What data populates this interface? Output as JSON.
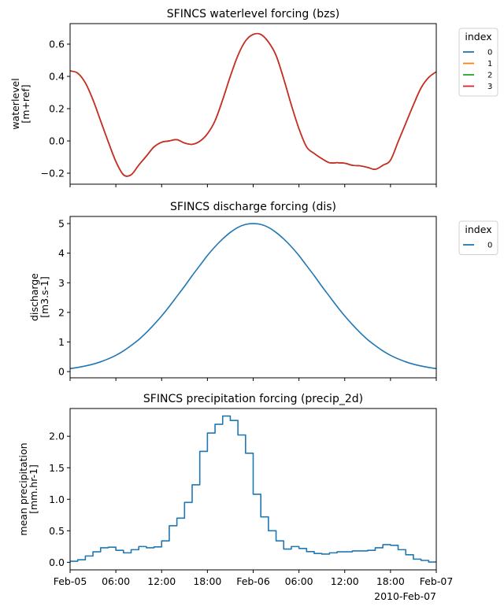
{
  "chart_data": [
    {
      "type": "line",
      "title": "SFINCS waterlevel forcing (bzs)",
      "ylabel": [
        "waterlevel",
        "[m+ref]"
      ],
      "ylim": [
        -0.268,
        0.727
      ],
      "yticks": [
        -0.2,
        0.0,
        0.2,
        0.4,
        0.6
      ],
      "yticklabels": [
        "−0.2",
        "0.0",
        "0.2",
        "0.4",
        "0.6"
      ],
      "xlim": [
        "2010-02-05T00:00",
        "2010-02-07T00:00"
      ],
      "xticks": [
        "2010-02-05T00:00",
        "2010-02-05T06:00",
        "2010-02-05T12:00",
        "2010-02-05T18:00",
        "2010-02-06T00:00",
        "2010-02-06T06:00",
        "2010-02-06T12:00",
        "2010-02-06T18:00",
        "2010-02-07T00:00"
      ],
      "xticklabels_visible": false,
      "grid": false,
      "legend": {
        "title": "index",
        "placement": "outside-top-right"
      },
      "x": [
        "2010-02-05T00:00",
        "2010-02-05T01:00",
        "2010-02-05T02:00",
        "2010-02-05T03:00",
        "2010-02-05T04:00",
        "2010-02-05T05:00",
        "2010-02-05T06:00",
        "2010-02-05T07:00",
        "2010-02-05T08:00",
        "2010-02-05T09:00",
        "2010-02-05T10:00",
        "2010-02-05T11:00",
        "2010-02-05T12:00",
        "2010-02-05T13:00",
        "2010-02-05T14:00",
        "2010-02-05T15:00",
        "2010-02-05T16:00",
        "2010-02-05T17:00",
        "2010-02-05T18:00",
        "2010-02-05T19:00",
        "2010-02-05T20:00",
        "2010-02-05T21:00",
        "2010-02-05T22:00",
        "2010-02-05T23:00",
        "2010-02-06T00:00",
        "2010-02-06T01:00",
        "2010-02-06T02:00",
        "2010-02-06T03:00",
        "2010-02-06T04:00",
        "2010-02-06T05:00",
        "2010-02-06T06:00",
        "2010-02-06T07:00",
        "2010-02-06T08:00",
        "2010-02-06T09:00",
        "2010-02-06T10:00",
        "2010-02-06T11:00",
        "2010-02-06T12:00",
        "2010-02-06T13:00",
        "2010-02-06T14:00",
        "2010-02-06T15:00",
        "2010-02-06T16:00",
        "2010-02-06T17:00",
        "2010-02-06T18:00",
        "2010-02-06T19:00",
        "2010-02-06T20:00",
        "2010-02-06T21:00",
        "2010-02-06T22:00",
        "2010-02-06T23:00",
        "2010-02-07T00:00"
      ],
      "series": [
        {
          "name": "0",
          "color": "#1f77b4",
          "values": [
            0.434,
            0.42,
            0.36,
            0.255,
            0.125,
            -0.005,
            -0.127,
            -0.21,
            -0.21,
            -0.15,
            -0.094,
            -0.037,
            -0.008,
            0.0,
            0.008,
            -0.013,
            -0.021,
            -0.002,
            0.044,
            0.125,
            0.255,
            0.4,
            0.53,
            0.62,
            0.66,
            0.66,
            0.613,
            0.53,
            0.385,
            0.223,
            0.076,
            -0.037,
            -0.078,
            -0.11,
            -0.135,
            -0.135,
            -0.138,
            -0.151,
            -0.154,
            -0.164,
            -0.176,
            -0.151,
            -0.119,
            -0.005,
            0.109,
            0.223,
            0.328,
            0.393,
            0.429
          ]
        },
        {
          "name": "1",
          "color": "#ff7f0e",
          "values": [
            0.434,
            0.42,
            0.36,
            0.255,
            0.125,
            -0.005,
            -0.127,
            -0.21,
            -0.21,
            -0.15,
            -0.094,
            -0.037,
            -0.008,
            0.0,
            0.008,
            -0.013,
            -0.021,
            -0.002,
            0.044,
            0.125,
            0.255,
            0.4,
            0.53,
            0.62,
            0.66,
            0.66,
            0.613,
            0.53,
            0.385,
            0.223,
            0.076,
            -0.037,
            -0.078,
            -0.11,
            -0.135,
            -0.135,
            -0.138,
            -0.151,
            -0.154,
            -0.164,
            -0.176,
            -0.151,
            -0.119,
            -0.005,
            0.109,
            0.223,
            0.328,
            0.393,
            0.429
          ]
        },
        {
          "name": "2",
          "color": "#2ca02c",
          "values": [
            0.434,
            0.42,
            0.36,
            0.255,
            0.125,
            -0.005,
            -0.127,
            -0.21,
            -0.21,
            -0.15,
            -0.094,
            -0.037,
            -0.008,
            0.0,
            0.008,
            -0.013,
            -0.021,
            -0.002,
            0.044,
            0.125,
            0.255,
            0.4,
            0.53,
            0.62,
            0.66,
            0.66,
            0.613,
            0.53,
            0.385,
            0.223,
            0.076,
            -0.037,
            -0.078,
            -0.11,
            -0.135,
            -0.135,
            -0.138,
            -0.151,
            -0.154,
            -0.164,
            -0.176,
            -0.151,
            -0.119,
            -0.005,
            0.109,
            0.223,
            0.328,
            0.393,
            0.429
          ]
        },
        {
          "name": "3",
          "color": "#d62728",
          "values": [
            0.434,
            0.42,
            0.36,
            0.255,
            0.125,
            -0.005,
            -0.127,
            -0.21,
            -0.21,
            -0.15,
            -0.094,
            -0.037,
            -0.008,
            0.0,
            0.008,
            -0.013,
            -0.021,
            -0.002,
            0.044,
            0.125,
            0.255,
            0.4,
            0.53,
            0.62,
            0.66,
            0.66,
            0.613,
            0.53,
            0.385,
            0.223,
            0.076,
            -0.037,
            -0.078,
            -0.11,
            -0.135,
            -0.135,
            -0.138,
            -0.151,
            -0.154,
            -0.164,
            -0.176,
            -0.151,
            -0.119,
            -0.005,
            0.109,
            0.223,
            0.328,
            0.393,
            0.429
          ]
        }
      ]
    },
    {
      "type": "line",
      "title": "SFINCS discharge forcing (dis)",
      "ylabel": [
        "discharge",
        "[m3.s-1]"
      ],
      "ylim": [
        -0.21,
        5.24
      ],
      "yticks": [
        0,
        1,
        2,
        3,
        4,
        5
      ],
      "yticklabels": [
        "0",
        "1",
        "2",
        "3",
        "4",
        "5"
      ],
      "xlim": [
        "2010-02-05T00:00",
        "2010-02-07T00:00"
      ],
      "xticks": [
        "2010-02-05T00:00",
        "2010-02-05T06:00",
        "2010-02-05T12:00",
        "2010-02-05T18:00",
        "2010-02-06T00:00",
        "2010-02-06T06:00",
        "2010-02-06T12:00",
        "2010-02-06T18:00",
        "2010-02-07T00:00"
      ],
      "xticklabels_visible": false,
      "grid": false,
      "legend": {
        "title": "index",
        "placement": "outside-top-right"
      },
      "x": [
        "2010-02-05T00:00",
        "2010-02-05T01:00",
        "2010-02-05T02:00",
        "2010-02-05T03:00",
        "2010-02-05T04:00",
        "2010-02-05T05:00",
        "2010-02-05T06:00",
        "2010-02-05T07:00",
        "2010-02-05T08:00",
        "2010-02-05T09:00",
        "2010-02-05T10:00",
        "2010-02-05T11:00",
        "2010-02-05T12:00",
        "2010-02-05T13:00",
        "2010-02-05T14:00",
        "2010-02-05T15:00",
        "2010-02-05T16:00",
        "2010-02-05T17:00",
        "2010-02-05T18:00",
        "2010-02-05T19:00",
        "2010-02-05T20:00",
        "2010-02-05T21:00",
        "2010-02-05T22:00",
        "2010-02-05T23:00",
        "2010-02-06T00:00",
        "2010-02-06T01:00",
        "2010-02-06T02:00",
        "2010-02-06T03:00",
        "2010-02-06T04:00",
        "2010-02-06T05:00",
        "2010-02-06T06:00",
        "2010-02-06T07:00",
        "2010-02-06T08:00",
        "2010-02-06T09:00",
        "2010-02-06T10:00",
        "2010-02-06T11:00",
        "2010-02-06T12:00",
        "2010-02-06T13:00",
        "2010-02-06T14:00",
        "2010-02-06T15:00",
        "2010-02-06T16:00",
        "2010-02-06T17:00",
        "2010-02-06T18:00",
        "2010-02-06T19:00",
        "2010-02-06T20:00",
        "2010-02-06T21:00",
        "2010-02-06T22:00",
        "2010-02-06T23:00",
        "2010-02-07T00:00"
      ],
      "series": [
        {
          "name": "0",
          "color": "#1f77b4",
          "values": [
            0.1,
            0.14,
            0.19,
            0.25,
            0.33,
            0.43,
            0.55,
            0.7,
            0.88,
            1.08,
            1.32,
            1.59,
            1.88,
            2.2,
            2.54,
            2.88,
            3.24,
            3.58,
            3.92,
            4.22,
            4.48,
            4.7,
            4.87,
            4.97,
            5.0,
            4.97,
            4.87,
            4.7,
            4.48,
            4.22,
            3.92,
            3.58,
            3.24,
            2.88,
            2.54,
            2.2,
            1.88,
            1.59,
            1.32,
            1.08,
            0.88,
            0.7,
            0.55,
            0.43,
            0.33,
            0.25,
            0.19,
            0.14,
            0.1
          ]
        }
      ]
    },
    {
      "type": "line",
      "drawstyle": "steps-post",
      "title": "SFINCS precipitation forcing (precip_2d)",
      "ylabel": [
        "mean precipitation",
        "[mm.hr-1]"
      ],
      "ylim": [
        -0.12,
        2.44
      ],
      "yticks": [
        0.0,
        0.5,
        1.0,
        1.5,
        2.0
      ],
      "yticklabels": [
        "0.0",
        "0.5",
        "1.0",
        "1.5",
        "2.0"
      ],
      "xlim": [
        "2010-02-05T00:00",
        "2010-02-07T00:00"
      ],
      "xticks": [
        "2010-02-05T00:00",
        "2010-02-05T06:00",
        "2010-02-05T12:00",
        "2010-02-05T18:00",
        "2010-02-06T00:00",
        "2010-02-06T06:00",
        "2010-02-06T12:00",
        "2010-02-06T18:00",
        "2010-02-07T00:00"
      ],
      "xticklabels": [
        "Feb-05",
        "06:00",
        "12:00",
        "18:00",
        "Feb-06",
        "06:00",
        "12:00",
        "18:00",
        "Feb-07"
      ],
      "xoffset_label": "2010-Feb-07",
      "xticklabels_visible": true,
      "grid": false,
      "x": [
        "2010-02-05T00:00",
        "2010-02-05T01:00",
        "2010-02-05T02:00",
        "2010-02-05T03:00",
        "2010-02-05T04:00",
        "2010-02-05T05:00",
        "2010-02-05T06:00",
        "2010-02-05T07:00",
        "2010-02-05T08:00",
        "2010-02-05T09:00",
        "2010-02-05T10:00",
        "2010-02-05T11:00",
        "2010-02-05T12:00",
        "2010-02-05T13:00",
        "2010-02-05T14:00",
        "2010-02-05T15:00",
        "2010-02-05T16:00",
        "2010-02-05T17:00",
        "2010-02-05T18:00",
        "2010-02-05T19:00",
        "2010-02-05T20:00",
        "2010-02-05T21:00",
        "2010-02-05T22:00",
        "2010-02-05T23:00",
        "2010-02-06T00:00",
        "2010-02-06T01:00",
        "2010-02-06T02:00",
        "2010-02-06T03:00",
        "2010-02-06T04:00",
        "2010-02-06T05:00",
        "2010-02-06T06:00",
        "2010-02-06T07:00",
        "2010-02-06T08:00",
        "2010-02-06T09:00",
        "2010-02-06T10:00",
        "2010-02-06T11:00",
        "2010-02-06T12:00",
        "2010-02-06T13:00",
        "2010-02-06T14:00",
        "2010-02-06T15:00",
        "2010-02-06T16:00",
        "2010-02-06T17:00",
        "2010-02-06T18:00",
        "2010-02-06T19:00",
        "2010-02-06T20:00",
        "2010-02-06T21:00",
        "2010-02-06T22:00",
        "2010-02-06T23:00",
        "2010-02-07T00:00"
      ],
      "series": [
        {
          "color": "#1f77b4",
          "values": [
            0.017,
            0.04,
            0.1,
            0.167,
            0.23,
            0.24,
            0.19,
            0.15,
            0.2,
            0.25,
            0.23,
            0.245,
            0.34,
            0.58,
            0.7,
            0.95,
            1.23,
            1.76,
            2.05,
            2.19,
            2.32,
            2.25,
            2.02,
            1.73,
            1.08,
            0.72,
            0.5,
            0.34,
            0.21,
            0.25,
            0.22,
            0.17,
            0.14,
            0.13,
            0.15,
            0.167,
            0.167,
            0.18,
            0.18,
            0.19,
            0.23,
            0.28,
            0.27,
            0.2,
            0.12,
            0.05,
            0.03,
            0.004,
            0.004
          ]
        }
      ]
    }
  ]
}
